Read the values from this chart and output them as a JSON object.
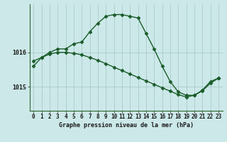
{
  "title": "Graphe pression niveau de la mer (hPa)",
  "bg_color": "#cce8e8",
  "grid_color": "#aacccc",
  "line_color": "#1a5c2a",
  "x_labels": [
    "0",
    "1",
    "2",
    "3",
    "4",
    "5",
    "6",
    "7",
    "8",
    "9",
    "10",
    "11",
    "12",
    "13",
    "14",
    "15",
    "16",
    "17",
    "18",
    "19",
    "20",
    "21",
    "22",
    "23"
  ],
  "yticks": [
    1015,
    1016
  ],
  "ylim": [
    1014.3,
    1017.4
  ],
  "xlim": [
    -0.5,
    23.5
  ],
  "series1": [
    1015.6,
    1015.85,
    1016.0,
    1016.1,
    1016.1,
    1016.25,
    1016.3,
    1016.6,
    1016.85,
    1017.05,
    1017.1,
    1017.1,
    1017.05,
    1017.0,
    1016.55,
    1016.1,
    1015.6,
    1015.15,
    1014.85,
    1014.75,
    1014.75,
    1014.9,
    1015.15,
    1015.25
  ],
  "series2": [
    1015.75,
    1015.85,
    1015.95,
    1016.0,
    1016.0,
    1015.97,
    1015.93,
    1015.85,
    1015.77,
    1015.67,
    1015.57,
    1015.47,
    1015.37,
    1015.27,
    1015.17,
    1015.07,
    1014.97,
    1014.87,
    1014.77,
    1014.7,
    1014.75,
    1014.88,
    1015.1,
    1015.25
  ],
  "marker": "D",
  "markersize": 2.5,
  "linewidth": 1.0,
  "title_fontsize": 6.0,
  "tick_fontsize": 5.5
}
